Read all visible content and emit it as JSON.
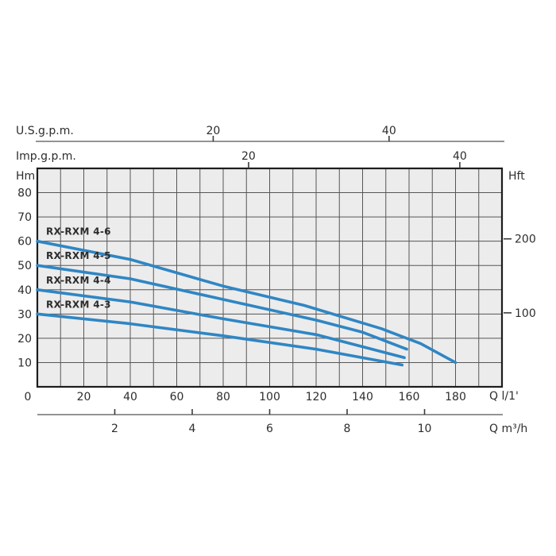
{
  "colors": {
    "page_bg": "#ffffff",
    "plot_bg": "#ececec",
    "grid_line": "#565656",
    "plot_border": "#1d1d1d",
    "axis_line": "#707070",
    "tick_mark": "#3a3a3a",
    "curve": "#2f86c4",
    "text": "#2d2d2d"
  },
  "chart_data": {
    "type": "line",
    "description": "Pump head vs flow performance curves",
    "x_axes": {
      "us_gpm": {
        "label": "U.S.g.p.m.",
        "ticks": [
          20,
          40
        ],
        "lpm_per_unit": 3.785
      },
      "imp_gpm": {
        "label": "Imp.g.p.m.",
        "ticks": [
          20,
          40
        ],
        "lpm_per_unit": 4.546
      },
      "l_per_min": {
        "label": "Q l/1'",
        "ticks": [
          0,
          20,
          40,
          60,
          80,
          100,
          120,
          140,
          160,
          180
        ],
        "range": [
          0,
          200
        ],
        "gridline_step": 10
      },
      "m3_per_h": {
        "label": "Q m³/h",
        "ticks": [
          2,
          4,
          6,
          8,
          10
        ],
        "lpm_per_unit": 16.667
      }
    },
    "y_axes": {
      "left": {
        "label": "Hm",
        "ticks": [
          10,
          20,
          30,
          40,
          50,
          60,
          70,
          80
        ],
        "range": [
          0,
          90
        ],
        "gridline_step": 10
      },
      "right": {
        "label": "Hft",
        "ticks": [
          200,
          100
        ],
        "m_per_unit": 0.3048
      }
    },
    "legend_position": "labels-above-curve-start",
    "grid": true,
    "series": [
      {
        "name": "RX-RXM 4-6",
        "points": [
          [
            0,
            60
          ],
          [
            40,
            52.5
          ],
          [
            80,
            41.5
          ],
          [
            115,
            33.5
          ],
          [
            148,
            24
          ],
          [
            165,
            17.8
          ],
          [
            180,
            10
          ]
        ]
      },
      {
        "name": "RX-RXM 4-5",
        "points": [
          [
            0,
            50
          ],
          [
            40,
            44.5
          ],
          [
            80,
            36
          ],
          [
            120,
            27.5
          ],
          [
            140,
            22.5
          ],
          [
            159,
            15.5
          ]
        ]
      },
      {
        "name": "RX-RXM 4-4",
        "points": [
          [
            0,
            40
          ],
          [
            40,
            35
          ],
          [
            80,
            28
          ],
          [
            120,
            21.5
          ],
          [
            158,
            12
          ]
        ]
      },
      {
        "name": "RX-RXM 4-3",
        "points": [
          [
            0,
            30
          ],
          [
            40,
            26
          ],
          [
            80,
            21
          ],
          [
            120,
            15.5
          ],
          [
            157,
            9
          ]
        ]
      }
    ]
  }
}
